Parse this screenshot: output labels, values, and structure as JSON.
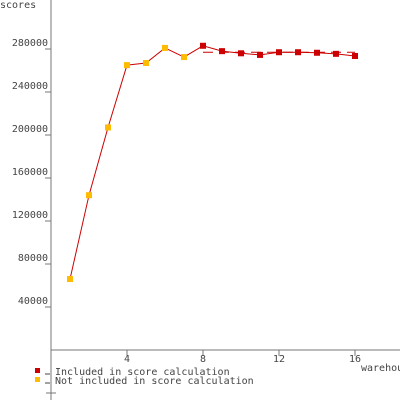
{
  "chart_data": {
    "type": "line",
    "y_label": "scores",
    "x_label": "warehouses",
    "series": [
      {
        "name": "Included in score calculation",
        "color": "#cc0000",
        "x": [
          8,
          9,
          10,
          11,
          12,
          13,
          14,
          15,
          16
        ],
        "values": [
          283000,
          278000,
          276000,
          274500,
          277000,
          277000,
          276500,
          275500,
          273500
        ]
      },
      {
        "name": "Not included in score calculation",
        "color": "#ffbb00",
        "x": [
          1,
          2,
          3,
          4,
          5,
          6,
          7
        ],
        "values": [
          66000,
          144000,
          207000,
          265000,
          267000,
          281000,
          272500
        ]
      }
    ],
    "line_color": "#cc0000",
    "score_line": {
      "value": 277000,
      "x": [
        8,
        16
      ]
    },
    "xlim": [
      0,
      18
    ],
    "xticks": [
      4,
      8,
      12,
      16
    ],
    "ylim": [
      0,
      320000
    ],
    "yticks": [
      40000,
      80000,
      120000,
      160000,
      200000,
      240000,
      280000
    ]
  }
}
